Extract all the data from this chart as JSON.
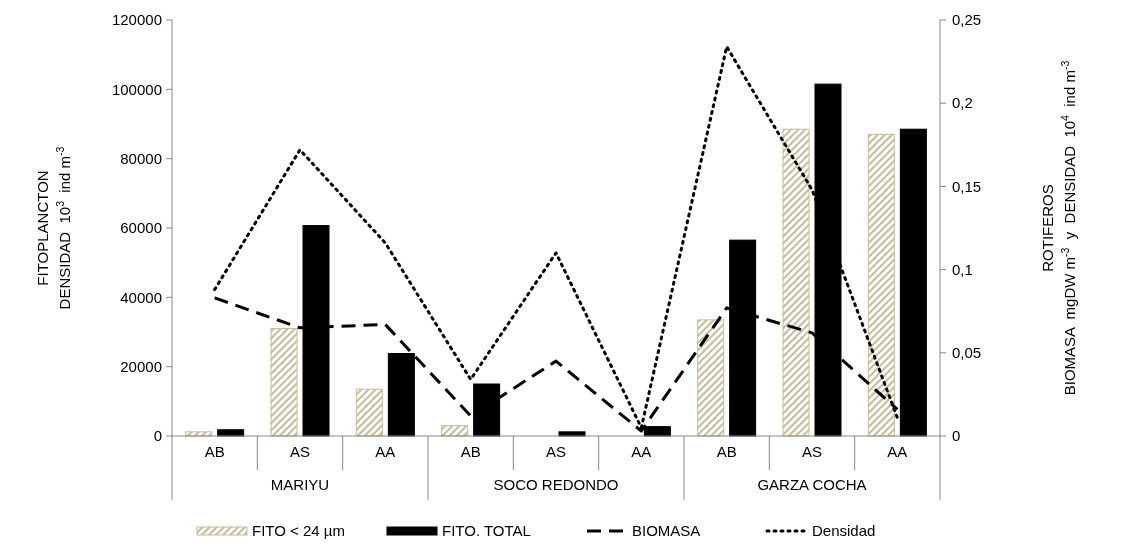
{
  "chart_data": {
    "type": "bar",
    "ylabel": "FITOPLANCTON\nDENSIDAD  10$^{3}$  ind m$^{-3}$",
    "y2label": "ROTIFEROS\nBIOMASA  mgDW m$^{-3}$  y  DENSIDAD  10$^{4}$  ind m$^{-3}$",
    "categories": [
      "AB",
      "AS",
      "AA",
      "AB",
      "AS",
      "AA",
      "AB",
      "AS",
      "AA"
    ],
    "annotations": [
      "MARIYU",
      "SOCO REDONDO",
      "GARZA COCHA"
    ],
    "series": [
      {
        "name": "FITO < 24 µm",
        "color": "#c4bc96",
        "values": [
          1200,
          31000,
          13500,
          3000,
          null,
          null,
          33500,
          88500,
          87000
        ]
      },
      {
        "name": "FITO. TOTAL",
        "color": "#000000",
        "values": [
          1800,
          60700,
          23800,
          15000,
          1200,
          2700,
          56500,
          101500,
          88500
        ]
      },
      {
        "name": "BIOMASA",
        "type": "line",
        "axis": "y2",
        "color": "#000000",
        "line_style": "dashed",
        "values": [
          0.083,
          0.065,
          0.067,
          0.012,
          0.045,
          0.003,
          0.077,
          0.062,
          0.016
        ]
      },
      {
        "name": "Densidad",
        "type": "line",
        "axis": "y2",
        "color": "#000000",
        "line_style": "dotted",
        "values": [
          0.088,
          0.172,
          0.116,
          0.034,
          0.11,
          0.005,
          0.234,
          0.148,
          0.011
        ]
      }
    ],
    "ylim": [
      0,
      120000
    ],
    "yticks": [
      0,
      20000,
      40000,
      60000,
      80000,
      100000,
      120000
    ],
    "y2lim": [
      0,
      0.25
    ],
    "y2ticks": [
      0,
      {
        "value": 0.05,
        "label": "0,05"
      },
      {
        "value": 0.1,
        "label": "0,1"
      },
      {
        "value": 0.15,
        "label": "0,15"
      },
      {
        "value": 0.2,
        "label": "0,2"
      },
      {
        "value": 0.25,
        "label": "0,25"
      }
    ],
    "grid": false,
    "legend": "bottom",
    "marker": "none"
  }
}
